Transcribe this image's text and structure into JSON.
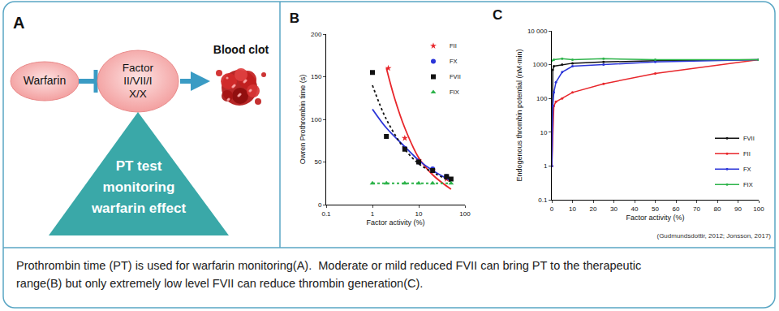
{
  "panel_a": {
    "label": "A",
    "nodes": [
      {
        "lines": [
          "Warfarin"
        ]
      },
      {
        "lines": [
          "Factor",
          "II/VII/I",
          "X/X"
        ]
      },
      {
        "lines": [
          "Blood clot"
        ]
      }
    ],
    "triangle": {
      "lines": [
        "PT test",
        "monitoring",
        "warfarin effect"
      ]
    }
  },
  "chart_data": [
    {
      "type": "scatter",
      "title": "B",
      "x_label": "Factor activity (%)",
      "y_label": "Owren Prothrombin time (s)",
      "log": "x",
      "xlim": [
        0.1,
        100
      ],
      "xticks": [
        0.1,
        1,
        10,
        100
      ],
      "ylim": [
        0,
        200
      ],
      "yticks": [
        0,
        50,
        100,
        150,
        200
      ],
      "grid": false,
      "legend": "top right",
      "series": [
        {
          "name": "FII",
          "color": "#e8262b",
          "marker": "star",
          "line_style": "solid",
          "x": [
            2.2,
            5,
            10,
            20,
            40
          ],
          "values": [
            160,
            78,
            52,
            40,
            30
          ],
          "curve": {
            "x": [
              2,
              3,
              5,
              10,
              20,
              50
            ],
            "values": [
              160,
              125,
              90,
              55,
              35,
              18
            ]
          }
        },
        {
          "name": "FX",
          "color": "#2b35d8",
          "marker": "circle",
          "line_style": "solid",
          "x": [
            5,
            10,
            20,
            40
          ],
          "values": [
            66,
            50,
            42,
            33
          ],
          "curve": {
            "x": [
              1,
              2,
              5,
              10,
              20,
              50
            ],
            "values": [
              112,
              90,
              68,
              52,
              40,
              28
            ]
          }
        },
        {
          "name": "FVII",
          "color": "#111111",
          "marker": "square",
          "line_style": "dot",
          "x": [
            1,
            2,
            5,
            10,
            20,
            40,
            50
          ],
          "values": [
            155,
            80,
            65,
            50,
            40,
            33,
            30
          ],
          "curve": {
            "x": [
              1,
              2,
              5,
              10,
              20,
              50
            ],
            "values": [
              140,
              100,
              65,
              48,
              38,
              27
            ]
          }
        },
        {
          "name": "FIX",
          "color": "#2db34a",
          "marker": "triangle-up",
          "line_style": "dot",
          "x": [
            1,
            2,
            5,
            10,
            20,
            50
          ],
          "values": [
            25,
            25,
            25,
            25,
            25,
            25
          ],
          "curve": {
            "x": [
              1,
              50
            ],
            "values": [
              25,
              25
            ]
          }
        }
      ]
    },
    {
      "type": "line",
      "title": "C",
      "x_label": "Factor activity (%)",
      "y_label": "Endogenous thrombin potential (nM·min)",
      "log": "y",
      "xlim": [
        0,
        100
      ],
      "xticks": [
        0,
        10,
        20,
        30,
        40,
        50,
        60,
        70,
        80,
        90,
        100
      ],
      "ylim": [
        0.1,
        10000
      ],
      "yticks": [
        0.1,
        1,
        10,
        100,
        1000,
        {
          "value": 10000,
          "label": "10 000"
        }
      ],
      "grid": false,
      "legend": "bottom right",
      "annotations": [
        "(Gudmundsdottir, 2012; Jonsson, 2017)"
      ],
      "series": [
        {
          "name": "FVII",
          "color": "#111111",
          "marker": "circle",
          "line_style": "solid",
          "x": [
            0.1,
            0.5,
            1,
            5,
            10,
            25,
            50,
            100
          ],
          "values": [
            1,
            700,
            900,
            1000,
            1100,
            1200,
            1300,
            1400
          ]
        },
        {
          "name": "FII",
          "color": "#e8262b",
          "marker": "circle",
          "line_style": "solid",
          "x": [
            0,
            1,
            2,
            5,
            10,
            25,
            50,
            100
          ],
          "values": [
            1,
            60,
            80,
            100,
            150,
            270,
            550,
            1400
          ]
        },
        {
          "name": "FX",
          "color": "#2b35d8",
          "marker": "circle",
          "line_style": "solid",
          "x": [
            0,
            0.5,
            1,
            2,
            5,
            10,
            25,
            50,
            100
          ],
          "values": [
            1,
            60,
            150,
            300,
            600,
            900,
            1000,
            1200,
            1400
          ]
        },
        {
          "name": "FIX",
          "color": "#2db34a",
          "marker": "circle",
          "line_style": "solid",
          "x": [
            0,
            1,
            5,
            10,
            25,
            50,
            100
          ],
          "values": [
            1300,
            1400,
            1500,
            1400,
            1500,
            1400,
            1400
          ]
        }
      ]
    }
  ],
  "caption": {
    "lines": [
      "Prothrombin time (PT) is used for warfarin monitoring(A).  Moderate or mild reduced FVII can bring PT to the therapeutic",
      "range(B) but only extremely low level FVII can reduce thrombin generation(C)."
    ]
  }
}
